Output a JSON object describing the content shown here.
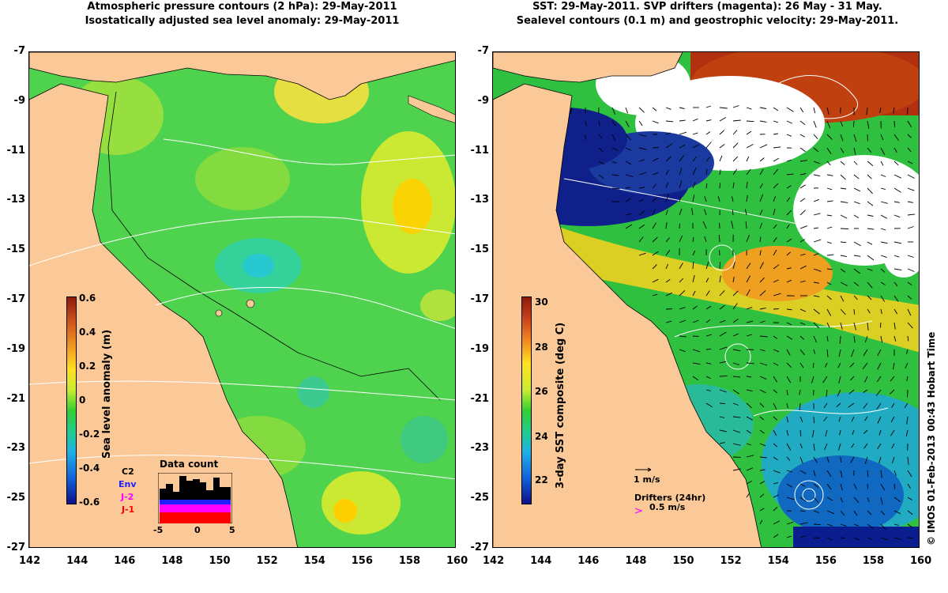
{
  "left_panel": {
    "title_line1": "Atmospheric pressure contours (2 hPa): 29-May-2011",
    "title_line2": "Isostatically adjusted sea level anomaly: 29-May-2011",
    "colorbar_label": "Sea level anomaly (m)",
    "colorbar_ticks": [
      "0.6",
      "0.4",
      "0.2",
      "0",
      "-0.2",
      "-0.4",
      "-0.6"
    ],
    "inset": {
      "title": "Data count",
      "satellites": [
        "C2",
        "Env",
        "J-2",
        "J-1"
      ],
      "sat_colors": [
        "#000000",
        "#2020ff",
        "#ff00ff",
        "#ff0000"
      ],
      "x_ticks": [
        "-5",
        "0",
        "5"
      ]
    }
  },
  "right_panel": {
    "title_line1": "SST: 29-May-2011. SVP drifters (magenta): 26 May - 31 May.",
    "title_line2": "Sealevel contours (0.1 m) and geostrophic velocity: 29-May-2011.",
    "colorbar_label": "3-day SST composite (deg C)",
    "colorbar_ticks": [
      "30",
      "28",
      "26",
      "24",
      "22"
    ],
    "velocity_scale": "1 m/s",
    "drifters_label": "Drifters (24hr)",
    "drifters_speed": "0.5 m/s"
  },
  "axes": {
    "x_ticks": [
      "142",
      "144",
      "146",
      "148",
      "150",
      "152",
      "154",
      "156",
      "158",
      "160"
    ],
    "y_ticks": [
      "-7",
      "-9",
      "-11",
      "-13",
      "-15",
      "-17",
      "-19",
      "-21",
      "-23",
      "-25",
      "-27"
    ]
  },
  "footer_vertical": "© IMOS 01-Feb-2013 00:43 Hobart Time",
  "colors": {
    "land": "#fbc998",
    "ocean_base": "#4fd34f"
  }
}
